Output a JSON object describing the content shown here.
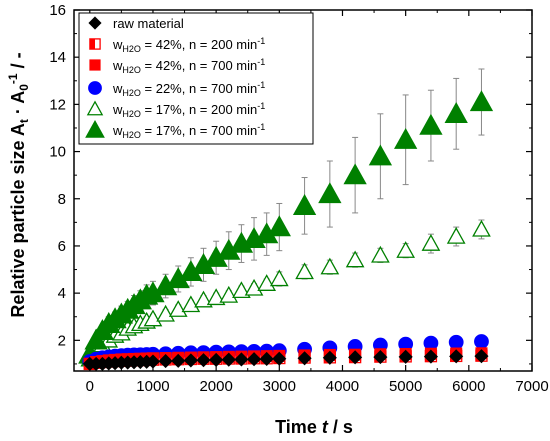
{
  "chart_data": {
    "type": "scatter",
    "xlabel": "Time t / s",
    "ylabel": "Relative particle size At · A0-1 / -",
    "xlim": [
      -250,
      7000
    ],
    "ylim": [
      0.7,
      16
    ],
    "xticks": [
      0,
      1000,
      2000,
      3000,
      4000,
      5000,
      6000,
      7000
    ],
    "yticks": [
      2,
      4,
      6,
      8,
      10,
      12,
      14,
      16
    ],
    "grid": false,
    "legend_position": "top-left",
    "series": [
      {
        "name": "raw material",
        "marker": "diamond-filled",
        "color": "#000000",
        "x": [
          0,
          100,
          200,
          300,
          400,
          500,
          600,
          700,
          800,
          900,
          1000,
          1200,
          1400,
          1600,
          1800,
          2000,
          2200,
          2400,
          2600,
          2800,
          3000,
          3400,
          3800,
          4200,
          4600,
          5000,
          5400,
          5800,
          6200
        ],
        "y": [
          1.0,
          1.0,
          1.0,
          1.02,
          1.03,
          1.05,
          1.06,
          1.07,
          1.08,
          1.09,
          1.1,
          1.12,
          1.13,
          1.15,
          1.16,
          1.17,
          1.18,
          1.19,
          1.2,
          1.21,
          1.22,
          1.24,
          1.26,
          1.28,
          1.29,
          1.3,
          1.31,
          1.32,
          1.33
        ]
      },
      {
        "name": "wH2O = 42%, n = 200 min-1",
        "marker": "square-half",
        "color": "#ff0000",
        "x": [
          0,
          100,
          200,
          300,
          400,
          500,
          600,
          700,
          800,
          900,
          1000,
          1200,
          1400,
          1600,
          1800,
          2000,
          2200,
          2400,
          2600,
          2800,
          3000,
          3400,
          3800,
          4200,
          4600,
          5000,
          5400,
          5800,
          6200
        ],
        "y": [
          1.0,
          1.05,
          1.08,
          1.1,
          1.12,
          1.13,
          1.14,
          1.15,
          1.16,
          1.17,
          1.18,
          1.19,
          1.2,
          1.21,
          1.22,
          1.22,
          1.23,
          1.23,
          1.24,
          1.24,
          1.25,
          1.27,
          1.28,
          1.29,
          1.31,
          1.32,
          1.33,
          1.34,
          1.35
        ]
      },
      {
        "name": "wH2O = 42%, n = 700 min-1",
        "marker": "square-filled",
        "color": "#ff0000",
        "x": [
          0,
          100,
          200,
          300,
          400,
          500,
          600,
          700,
          800,
          900,
          1000,
          1200,
          1400,
          1600,
          1800,
          2000,
          2200,
          2400,
          2600,
          2800,
          3000,
          3400,
          3800,
          4200,
          4600,
          5000,
          5400,
          5800,
          6200
        ],
        "y": [
          1.0,
          1.08,
          1.12,
          1.15,
          1.17,
          1.19,
          1.2,
          1.21,
          1.22,
          1.23,
          1.24,
          1.25,
          1.26,
          1.27,
          1.28,
          1.29,
          1.3,
          1.31,
          1.32,
          1.33,
          1.34,
          1.36,
          1.38,
          1.39,
          1.41,
          1.42,
          1.43,
          1.44,
          1.45
        ]
      },
      {
        "name": "wH2O = 22%, n = 700 min-1",
        "marker": "circle-filled",
        "color": "#0000ff",
        "x": [
          0,
          100,
          200,
          300,
          400,
          500,
          600,
          700,
          800,
          900,
          1000,
          1200,
          1400,
          1600,
          1800,
          2000,
          2200,
          2400,
          2600,
          2800,
          3000,
          3400,
          3800,
          4200,
          4600,
          5000,
          5400,
          5800,
          6200
        ],
        "y": [
          1.1,
          1.2,
          1.26,
          1.3,
          1.33,
          1.35,
          1.37,
          1.38,
          1.39,
          1.4,
          1.41,
          1.43,
          1.45,
          1.47,
          1.48,
          1.5,
          1.51,
          1.52,
          1.53,
          1.54,
          1.56,
          1.62,
          1.68,
          1.74,
          1.8,
          1.84,
          1.88,
          1.92,
          1.95
        ]
      },
      {
        "name": "wH2O = 17%, n = 200 min-1",
        "marker": "triangle-open",
        "color": "#008000",
        "x": [
          0,
          100,
          200,
          300,
          400,
          500,
          600,
          700,
          800,
          900,
          1000,
          1200,
          1400,
          1600,
          1800,
          2000,
          2200,
          2400,
          2600,
          2800,
          3000,
          3400,
          3800,
          4200,
          4600,
          5000,
          5400,
          5800,
          6200
        ],
        "y": [
          1.2,
          1.5,
          1.8,
          2.0,
          2.2,
          2.3,
          2.5,
          2.6,
          2.7,
          2.8,
          2.9,
          3.1,
          3.3,
          3.5,
          3.7,
          3.8,
          3.9,
          4.1,
          4.2,
          4.4,
          4.6,
          4.9,
          5.1,
          5.4,
          5.6,
          5.8,
          6.1,
          6.4,
          6.7
        ],
        "err": [
          0.1,
          0.1,
          0.15,
          0.15,
          0.15,
          0.15,
          0.15,
          0.15,
          0.2,
          0.2,
          0.2,
          0.2,
          0.2,
          0.2,
          0.2,
          0.2,
          0.2,
          0.2,
          0.2,
          0.2,
          0.3,
          0.3,
          0.3,
          0.3,
          0.3,
          0.3,
          0.4,
          0.4,
          0.4
        ]
      },
      {
        "name": "wH2O = 17%, n = 700 min-1",
        "marker": "triangle-filled",
        "color": "#008000",
        "x": [
          0,
          100,
          200,
          300,
          400,
          500,
          600,
          700,
          800,
          900,
          1000,
          1200,
          1400,
          1600,
          1800,
          2000,
          2200,
          2400,
          2600,
          2800,
          3000,
          3400,
          3800,
          4200,
          4600,
          5000,
          5400,
          5800,
          6200
        ],
        "y": [
          1.4,
          2.0,
          2.4,
          2.7,
          2.9,
          3.1,
          3.3,
          3.5,
          3.7,
          3.9,
          4.0,
          4.3,
          4.6,
          4.9,
          5.2,
          5.5,
          5.8,
          6.1,
          6.3,
          6.5,
          6.8,
          7.7,
          8.2,
          9.0,
          9.8,
          10.5,
          11.1,
          11.6,
          12.1
        ],
        "err": [
          0.1,
          0.2,
          0.25,
          0.3,
          0.3,
          0.35,
          0.35,
          0.4,
          0.4,
          0.45,
          0.5,
          0.5,
          0.55,
          0.6,
          0.7,
          0.7,
          0.8,
          0.8,
          0.9,
          0.9,
          1.0,
          1.2,
          1.4,
          1.6,
          1.8,
          1.9,
          1.5,
          1.5,
          1.4
        ]
      }
    ]
  },
  "axes": {
    "x_title_prefix": "Time ",
    "x_title_var": "t",
    "x_title_suffix": " / s",
    "y_title_main": "Relative particle size A",
    "y_sub_t": "t",
    "y_dot": " · A",
    "y_sub_0": "0",
    "y_sup": "-1",
    "y_title_end": " / -"
  },
  "legend": {
    "entries": [
      {
        "text": "raw material",
        "w_label": "",
        "w_sub": "",
        "rest": "",
        "sup": ""
      },
      {
        "text": "",
        "w_label": "w",
        "w_sub": "H2O",
        "rest": " = 42%, n = 200 min",
        "sup": "-1"
      },
      {
        "text": "",
        "w_label": "w",
        "w_sub": "H2O",
        "rest": " = 42%, n = 700 min",
        "sup": "-1"
      },
      {
        "text": "",
        "w_label": "w",
        "w_sub": "H2O",
        "rest": " = 22%, n = 700 min",
        "sup": "-1"
      },
      {
        "text": "",
        "w_label": "w",
        "w_sub": "H2O",
        "rest": " = 17%, n = 200 min",
        "sup": "-1"
      },
      {
        "text": "",
        "w_label": "w",
        "w_sub": "H2O",
        "rest": " = 17%, n = 700 min",
        "sup": "-1"
      }
    ]
  }
}
